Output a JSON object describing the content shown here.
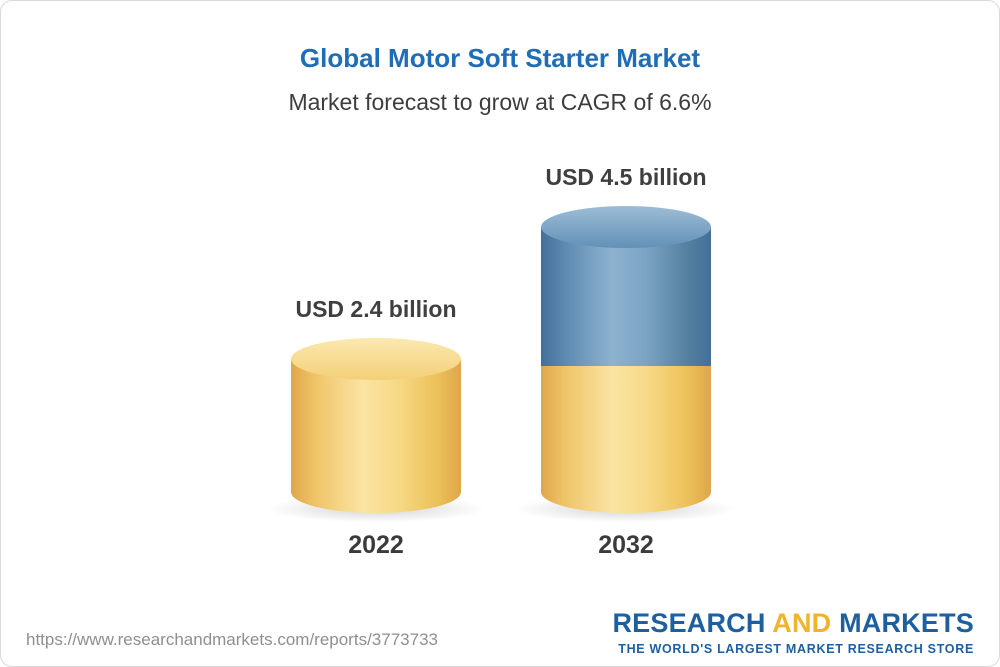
{
  "page": {
    "title": "Global Motor Soft Starter Market",
    "subtitle": "Market forecast to grow at CAGR of 6.6%"
  },
  "chart_data": {
    "type": "bar",
    "title": "Global Motor Soft Starter Market",
    "subtitle": "Market forecast to grow at CAGR of 6.6%",
    "categories": [
      "2022",
      "2032"
    ],
    "values": [
      2.4,
      4.5
    ],
    "value_labels": [
      "USD 2.4 billion",
      "USD 4.5 billion"
    ],
    "unit": "USD billion",
    "cagr_percent": 6.6,
    "legend_position": "none",
    "grid": false,
    "colors": {
      "bar_2022": "#f5d57d",
      "bar_2032_lower": "#f5d57d",
      "bar_2032_upper": "#6290b7",
      "title_accent": "#1f6db6"
    }
  },
  "footer": {
    "url": "https://www.researchandmarkets.com/reports/3773733",
    "logo": {
      "part1": "RESEARCH",
      "part2": "AND",
      "part3": "MARKETS",
      "tagline": "THE WORLD'S LARGEST MARKET RESEARCH STORE"
    }
  }
}
